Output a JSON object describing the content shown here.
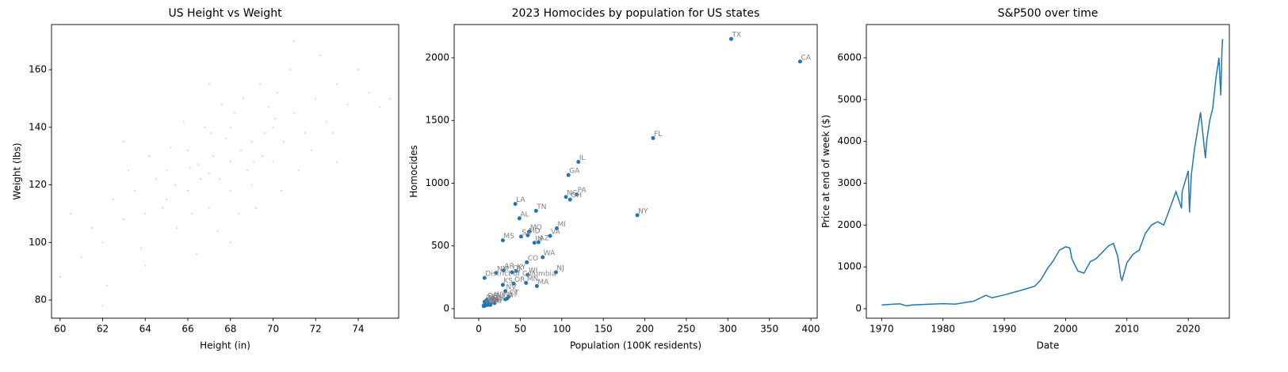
{
  "chart_data": [
    {
      "type": "scatter",
      "title": "US Height vs Weight",
      "xlabel": "Height (in)",
      "ylabel": "Weight (lbs)",
      "color": "#1f77b4",
      "alpha": 0.3,
      "x": [
        68,
        67,
        69,
        66,
        70,
        65,
        68.5,
        67.5,
        66.5,
        69.5,
        71,
        64,
        72,
        63,
        68,
        67,
        70,
        66,
        69,
        65,
        73,
        62,
        74,
        61,
        68,
        67.8,
        66.2,
        69.8,
        70.5,
        64.5,
        71.5,
        63.5,
        72.5,
        65.5,
        68.2,
        67.2,
        66.8,
        69.2,
        70.2,
        65.2,
        62.5,
        73.5,
        61.5,
        74.5,
        75,
        60.5,
        68.8,
        66.6,
        70.8,
        64.2,
        67.4,
        69.4,
        71.2,
        63.8,
        65.8,
        68.4,
        72.2,
        62.2,
        67.6,
        69.6,
        66.4,
        70.4,
        64.8,
        71.8,
        63.2,
        68.6,
        65.4,
        67.1,
        69.1,
        66.1,
        70.1,
        71,
        62,
        73,
        64,
        68,
        67,
        75.5,
        60,
        72.8,
        63
      ],
      "values": [
        128,
        124,
        135,
        118,
        140,
        115,
        132,
        122,
        127,
        130,
        145,
        110,
        150,
        108,
        140,
        112,
        128,
        132,
        120,
        125,
        155,
        100,
        160,
        95,
        118,
        136,
        110,
        147,
        135,
        122,
        138,
        118,
        142,
        105,
        145,
        130,
        140,
        112,
        152,
        133,
        115,
        148,
        105,
        152,
        147,
        110,
        125,
        122,
        160,
        130,
        104,
        155,
        125,
        98,
        142,
        110,
        165,
        85,
        148,
        138,
        96,
        118,
        112,
        132,
        125,
        150,
        120,
        138,
        128,
        126,
        143,
        170,
        78,
        128,
        92,
        100,
        155,
        150,
        88,
        138,
        135
      ],
      "xlim": [
        59.6,
        75.9
      ],
      "ylim": [
        73.7,
        175.7
      ],
      "xticks": [
        60,
        62,
        64,
        66,
        68,
        70,
        72,
        74
      ],
      "yticks": [
        80,
        100,
        120,
        140,
        160
      ]
    },
    {
      "type": "scatter",
      "title": "2023 Homocides by population for US states",
      "xlabel": "Population (100K residents)",
      "ylabel": "Homocides",
      "color": "#1f77b4",
      "alpha": 1,
      "labels": [
        "TX",
        "CA",
        "FL",
        "IL",
        "GA",
        "PA",
        "NC",
        "OH",
        "NY",
        "LA",
        "TN",
        "AL",
        "MI",
        "MO",
        "MD",
        "SC",
        "IN",
        "AZ",
        "VA",
        "MS",
        "WA",
        "CO",
        "NJ",
        "AR",
        "KY",
        "OK",
        "NM",
        "WI",
        "District of Columbia",
        "KS",
        "OR",
        "MN",
        "MA",
        "NV",
        "CT",
        "UT",
        "IA",
        "WV",
        "NE",
        "ME",
        "NH",
        "VT",
        "ND",
        "SD",
        "MT",
        "ID",
        "RI",
        "DE",
        "AK",
        "HI",
        "WY"
      ],
      "x": [
        304,
        387,
        210,
        120,
        108,
        118,
        105,
        110,
        191,
        44,
        69,
        49,
        94,
        61,
        59,
        51,
        67,
        72,
        86,
        29,
        77,
        58,
        93,
        30,
        45,
        40,
        21,
        59,
        7,
        29,
        42,
        57,
        70,
        32,
        36,
        34,
        32,
        18,
        20,
        14,
        14,
        6,
        8,
        9,
        11,
        19,
        11,
        10,
        7,
        14,
        6
      ],
      "values": [
        2150,
        1970,
        1360,
        1170,
        1065,
        910,
        890,
        870,
        745,
        835,
        780,
        720,
        640,
        615,
        585,
        575,
        525,
        530,
        580,
        545,
        410,
        370,
        290,
        305,
        300,
        290,
        285,
        270,
        245,
        190,
        200,
        205,
        180,
        140,
        95,
        80,
        75,
        80,
        70,
        30,
        35,
        20,
        25,
        35,
        50,
        45,
        30,
        70,
        55,
        35,
        25
      ],
      "xlim": [
        -29.6,
        407.6
      ],
      "ylim": [
        -76,
        2265
      ],
      "xticks": [
        0,
        50,
        100,
        150,
        200,
        250,
        300,
        350,
        400
      ],
      "yticks": [
        0,
        500,
        1000,
        1500,
        2000
      ]
    },
    {
      "type": "line",
      "title": "S&P500 over time",
      "xlabel": "Date",
      "ylabel": "Price at end of week ($)",
      "color": "#1f77b4",
      "x": [
        1970,
        1972,
        1973,
        1974,
        1975,
        1980,
        1982,
        1985,
        1987,
        1988,
        1990,
        1991,
        1993,
        1995,
        1996,
        1997,
        1998,
        1999,
        2000,
        2000.7,
        2001,
        2002,
        2003,
        2004,
        2005,
        2006,
        2007,
        2007.8,
        2008.5,
        2009,
        2009.2,
        2010,
        2011,
        2012,
        2013,
        2014,
        2015,
        2016,
        2017,
        2018,
        2018.9,
        2019,
        2020,
        2020.2,
        2020.5,
        2021,
        2022,
        2022.8,
        2023,
        2023.5,
        2024,
        2024.5,
        2025,
        2025.3,
        2025.5,
        2025.6
      ],
      "values": [
        90,
        110,
        115,
        70,
        90,
        120,
        110,
        180,
        320,
        260,
        330,
        370,
        450,
        540,
        700,
        950,
        1150,
        1400,
        1480,
        1450,
        1200,
        900,
        850,
        1120,
        1200,
        1350,
        1500,
        1560,
        1250,
        750,
        680,
        1100,
        1300,
        1400,
        1800,
        2000,
        2080,
        2000,
        2400,
        2800,
        2400,
        2800,
        3300,
        2300,
        3200,
        3800,
        4700,
        3600,
        4000,
        4500,
        4800,
        5500,
        6000,
        5100,
        6200,
        6450
      ],
      "xlim": [
        1967.5,
        2026.7
      ],
      "ylim": [
        -227,
        6795
      ],
      "xticks": [
        1970,
        1980,
        1990,
        2000,
        2010,
        2020
      ],
      "yticks": [
        0,
        1000,
        2000,
        3000,
        4000,
        5000,
        6000
      ]
    }
  ]
}
